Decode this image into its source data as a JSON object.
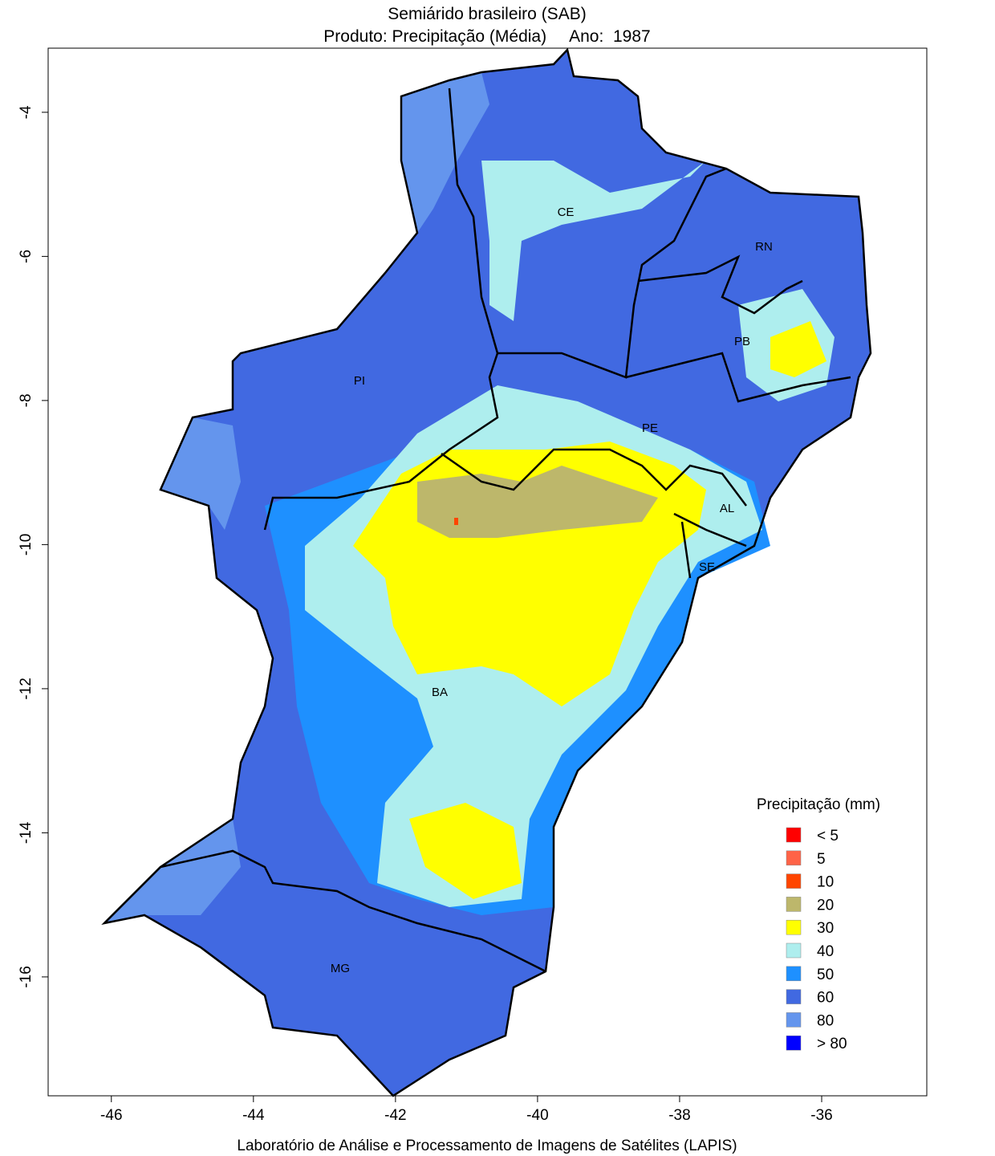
{
  "map": {
    "title": "Semiárido brasileiro (SAB)",
    "subtitle": "Produto: Precipitação (Média)     Ano:  1987",
    "xlim": [
      -46.89,
      -34.52
    ],
    "ylim": [
      -3.11,
      -17.65
    ],
    "xticks": [
      -46,
      -44,
      -42,
      -40,
      -38,
      -36
    ],
    "yticks": [
      -4,
      -6,
      -8,
      -10,
      -12,
      -14,
      -16
    ],
    "legend": {
      "title": "Precipitação (mm)",
      "items": [
        {
          "label": "< 5",
          "color": "#ff0000"
        },
        {
          "label": "5",
          "color": "#ff6347"
        },
        {
          "label": "10",
          "color": "#ff4500"
        },
        {
          "label": "20",
          "color": "#bdb76b"
        },
        {
          "label": "30",
          "color": "#ffff00"
        },
        {
          "label": "40",
          "color": "#aeeeee"
        },
        {
          "label": "50",
          "color": "#1e90ff"
        },
        {
          "label": "60",
          "color": "#4169e1"
        },
        {
          "label": "80",
          "color": "#6495ed"
        },
        {
          "label": "> 80",
          "color": "#0000ff"
        }
      ]
    },
    "regions": [
      "CE",
      "RN",
      "PB",
      "PI",
      "PE",
      "AL",
      "SE",
      "BA",
      "MG"
    ],
    "footer": "Laboratório de Análise e Processamento de Imagens de Satélites (LAPIS)"
  }
}
